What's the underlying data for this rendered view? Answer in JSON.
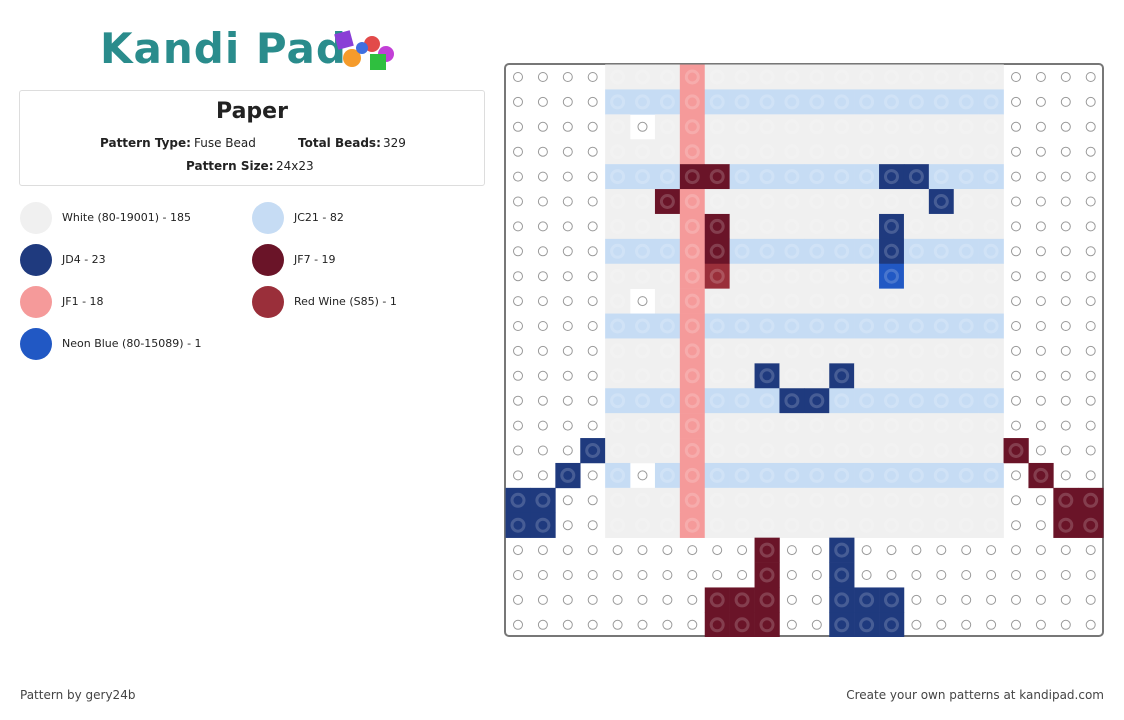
{
  "header": {
    "logo": "Kandi Pad"
  },
  "pattern": {
    "title": "Paper",
    "type_label": "Pattern Type:",
    "type": "Fuse Bead",
    "beads_label": "Total Beads:",
    "beads": "329",
    "size_label": "Pattern Size:",
    "size": "24x23"
  },
  "legend": [
    {
      "label": "White (80-19001) - 185",
      "color": "#f0f0f0"
    },
    {
      "label": "JC21 - 82",
      "color": "#c6dcf4"
    },
    {
      "label": "JD4 - 23",
      "color": "#1f3a7e"
    },
    {
      "label": "JF7 - 19",
      "color": "#6a1428"
    },
    {
      "label": "JF1 - 18",
      "color": "#f59a9a"
    },
    {
      "label": "Red Wine (S85) - 1",
      "color": "#9a2f3a"
    },
    {
      "label": "Neon Blue (80-15089) - 1",
      "color": "#2158c4"
    }
  ],
  "footer": {
    "credit": "Pattern by gery24b",
    "link": "Create your own patterns at kandipad.com"
  }
}
